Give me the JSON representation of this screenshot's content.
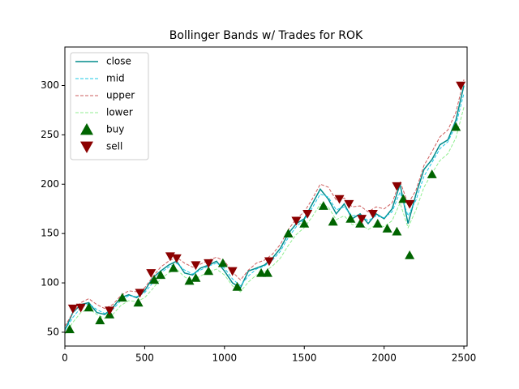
{
  "chart_data": {
    "type": "line",
    "title": "Bollinger Bands w/ Trades for ROK",
    "x": [
      0,
      50,
      100,
      150,
      200,
      250,
      300,
      350,
      400,
      450,
      500,
      550,
      600,
      650,
      700,
      750,
      800,
      850,
      900,
      950,
      1000,
      1050,
      1100,
      1150,
      1200,
      1250,
      1300,
      1350,
      1400,
      1450,
      1500,
      1550,
      1600,
      1650,
      1700,
      1750,
      1800,
      1850,
      1900,
      1950,
      2000,
      2050,
      2100,
      2150,
      2200,
      2250,
      2300,
      2350,
      2400,
      2450,
      2500
    ],
    "series": [
      {
        "name": "close",
        "color": "#008b8b",
        "style": "solid",
        "values": [
          52,
          70,
          78,
          80,
          70,
          68,
          75,
          85,
          88,
          85,
          92,
          105,
          112,
          118,
          122,
          110,
          108,
          115,
          118,
          122,
          112,
          100,
          95,
          112,
          115,
          118,
          125,
          135,
          150,
          160,
          165,
          180,
          195,
          185,
          170,
          180,
          165,
          170,
          160,
          170,
          165,
          175,
          200,
          160,
          190,
          215,
          225,
          240,
          245,
          265,
          300
        ]
      },
      {
        "name": "mid",
        "color": "#1ec8e6",
        "style": "dashed",
        "values": [
          52,
          65,
          75,
          79,
          73,
          69,
          73,
          82,
          87,
          86,
          90,
          100,
          110,
          116,
          120,
          113,
          109,
          113,
          117,
          120,
          115,
          104,
          97,
          107,
          114,
          117,
          123,
          132,
          146,
          157,
          164,
          176,
          190,
          187,
          174,
          177,
          168,
          169,
          163,
          168,
          166,
          172,
          192,
          168,
          184,
          208,
          222,
          236,
          243,
          260,
          292
        ]
      },
      {
        "name": "upper",
        "color": "#cd5c5c",
        "style": "dashed",
        "values": [
          56,
          70,
          80,
          84,
          78,
          74,
          78,
          87,
          92,
          91,
          95,
          106,
          116,
          122,
          126,
          120,
          116,
          119,
          123,
          126,
          122,
          111,
          103,
          113,
          120,
          123,
          129,
          139,
          154,
          165,
          172,
          185,
          200,
          197,
          184,
          186,
          177,
          178,
          172,
          177,
          175,
          181,
          203,
          180,
          194,
          219,
          233,
          248,
          255,
          273,
          306
        ]
      },
      {
        "name": "lower",
        "color": "#90ee90",
        "style": "dashed",
        "values": [
          48,
          60,
          70,
          74,
          68,
          64,
          68,
          77,
          82,
          81,
          85,
          94,
          104,
          110,
          114,
          106,
          102,
          107,
          111,
          114,
          108,
          97,
          91,
          101,
          108,
          111,
          117,
          125,
          138,
          149,
          156,
          167,
          180,
          177,
          164,
          168,
          159,
          160,
          154,
          159,
          157,
          163,
          181,
          156,
          174,
          197,
          211,
          224,
          231,
          247,
          278
        ]
      }
    ],
    "markers": [
      {
        "name": "buy",
        "color": "#006400",
        "marker": "^",
        "x": [
          30,
          150,
          220,
          280,
          360,
          460,
          560,
          600,
          680,
          780,
          820,
          900,
          990,
          1080,
          1230,
          1270,
          1400,
          1500,
          1620,
          1680,
          1790,
          1850,
          1960,
          2020,
          2080,
          2120,
          2160,
          2300,
          2450
        ],
        "y": [
          53,
          75,
          62,
          68,
          85,
          80,
          103,
          108,
          115,
          102,
          105,
          112,
          120,
          96,
          110,
          110,
          150,
          160,
          178,
          162,
          165,
          160,
          160,
          155,
          152,
          185,
          128,
          210,
          258
        ]
      },
      {
        "name": "sell",
        "color": "#8b0000",
        "marker": "v",
        "x": [
          50,
          100,
          280,
          470,
          540,
          660,
          700,
          820,
          900,
          1050,
          1280,
          1450,
          1520,
          1720,
          1780,
          1860,
          1930,
          2080,
          2160,
          2480
        ],
        "y": [
          74,
          75,
          72,
          90,
          110,
          127,
          125,
          118,
          120,
          112,
          122,
          163,
          170,
          185,
          180,
          165,
          170,
          198,
          180,
          300
        ]
      }
    ],
    "xlim": [
      0,
      2520
    ],
    "ylim": [
      36,
      339
    ],
    "xticks": [
      0,
      500,
      1000,
      1500,
      2000,
      2500
    ],
    "yticks": [
      50,
      100,
      150,
      200,
      250,
      300
    ],
    "legend": "upper left"
  }
}
